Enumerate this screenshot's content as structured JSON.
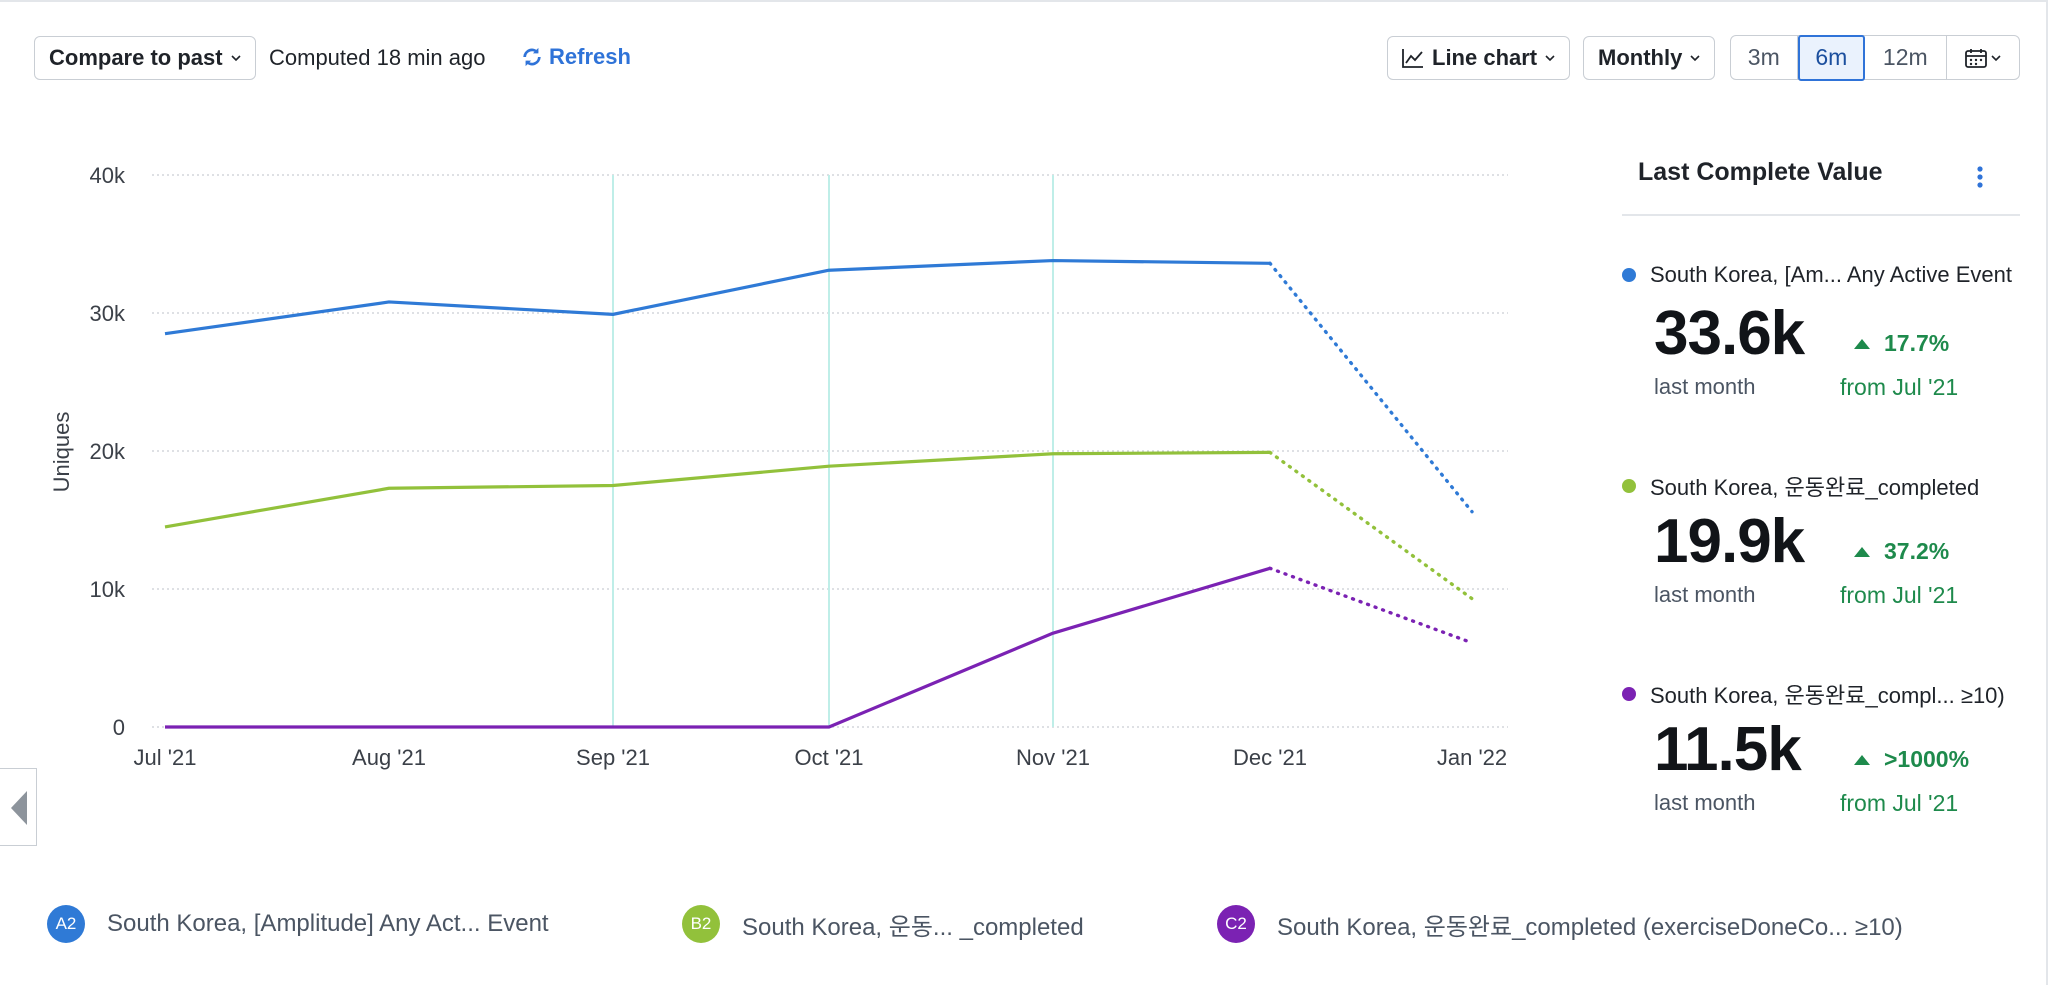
{
  "toolbar": {
    "compare_label": "Compare to past",
    "computed_text": "Computed 18 min ago",
    "refresh_label": "Refresh",
    "chart_type_label": "Line chart",
    "interval_label": "Monthly",
    "ranges": [
      "3m",
      "6m",
      "12m"
    ],
    "active_range": "6m"
  },
  "panel": {
    "title": "Last Complete Value",
    "stats": [
      {
        "name": "South Korea, [Am... Any Active Event",
        "value": "33.6k",
        "period": "last month",
        "change": "17.7%",
        "from": "from Jul '21",
        "color": "#2f7ad6"
      },
      {
        "name": "South Korea, 운동완료_completed",
        "value": "19.9k",
        "period": "last month",
        "change": "37.2%",
        "from": "from Jul '21",
        "color": "#92c13b"
      },
      {
        "name": "South Korea, 운동완료_compl... ≥10)",
        "value": "11.5k",
        "period": "last month",
        "change": ">1000%",
        "from": "from Jul '21",
        "color": "#7b22b3"
      }
    ]
  },
  "legend": [
    {
      "badge": "A2",
      "label": "South Korea, [Amplitude] Any Act... Event",
      "color": "#2f7ad6"
    },
    {
      "badge": "B2",
      "label": "South Korea, 운동...  _completed",
      "color": "#92c13b"
    },
    {
      "badge": "C2",
      "label": "South Korea, 운동완료_completed (exerciseDoneCo... ≥10)",
      "color": "#7b22b3"
    }
  ],
  "chart_data": {
    "type": "line",
    "title": "",
    "xlabel": "",
    "ylabel": "Uniques",
    "categories": [
      "Jul '21",
      "Aug '21",
      "Sep '21",
      "Oct '21",
      "Nov '21",
      "Dec '21",
      "Jan '22"
    ],
    "yticks": [
      0,
      10000,
      20000,
      30000,
      40000
    ],
    "ytick_labels": [
      "0",
      "10k",
      "20k",
      "30k",
      "40k"
    ],
    "ylim": [
      0,
      40000
    ],
    "incomplete_last_point": true,
    "highlight_categories": [
      "Sep '21",
      "Oct '21",
      "Nov '21"
    ],
    "series": [
      {
        "name": "South Korea, [Amplitude] Any Active Event",
        "color": "#2f7ad6",
        "values": [
          28500,
          30800,
          29900,
          33100,
          33800,
          33600,
          15600
        ]
      },
      {
        "name": "South Korea, 운동완료_completed",
        "color": "#92c13b",
        "values": [
          14500,
          17300,
          17500,
          18900,
          19800,
          19900,
          9300
        ]
      },
      {
        "name": "South Korea, 운동완료_completed (exerciseDoneCount ≥10)",
        "color": "#7b22b3",
        "values": [
          0,
          0,
          0,
          0,
          6800,
          11500,
          6100
        ]
      }
    ]
  }
}
